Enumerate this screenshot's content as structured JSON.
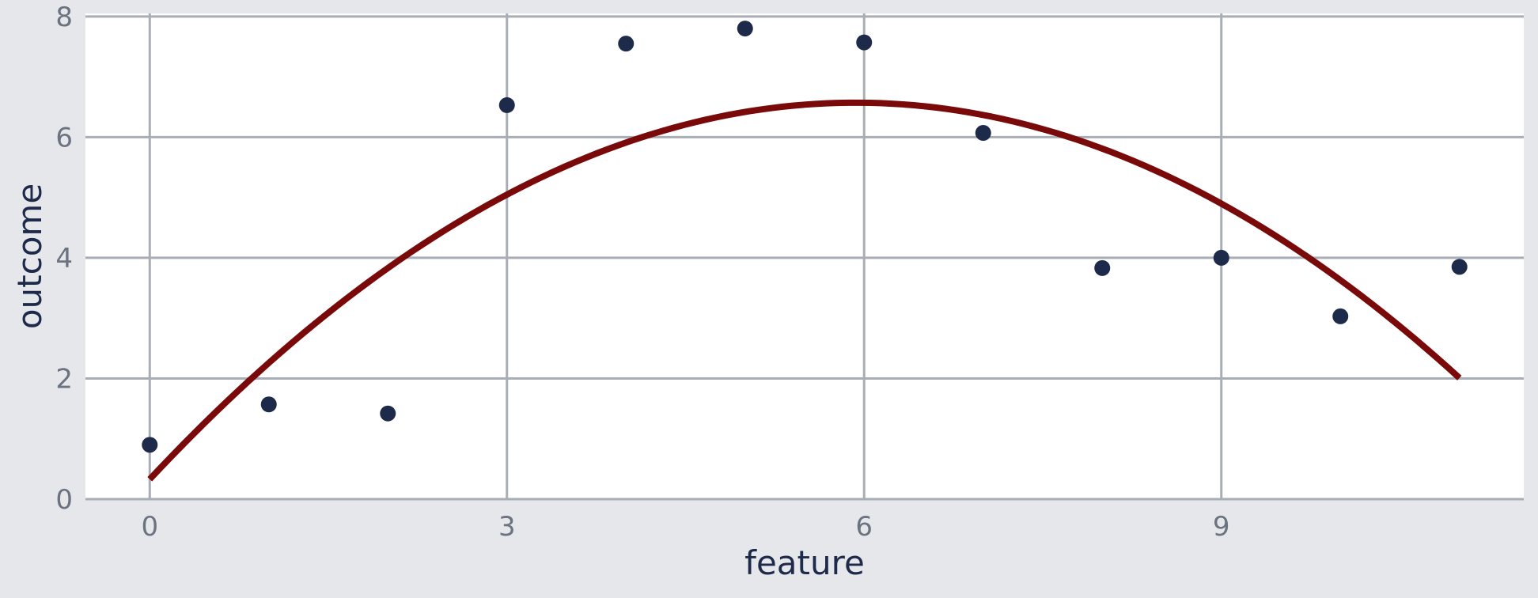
{
  "chart_data": {
    "type": "scatter",
    "title": "",
    "xlabel": "feature",
    "ylabel": "outcome",
    "xlim": [
      -0.54,
      11.54
    ],
    "ylim": [
      0,
      8.05
    ],
    "x_ticks": [
      0,
      3,
      6,
      9
    ],
    "y_ticks": [
      0,
      2,
      4,
      6,
      8
    ],
    "grid": true,
    "legend": "none",
    "colors": {
      "background": "#e5e7eb",
      "panel": "#ffffff",
      "grid": "#a9adb6",
      "points": "#1e2a4a",
      "fit_line": "#7a0a0a"
    },
    "series": [
      {
        "kind": "points",
        "x": [
          0,
          1,
          2,
          3,
          4,
          5,
          6,
          7,
          8,
          9,
          10,
          11
        ],
        "y": [
          0.9,
          1.57,
          1.42,
          6.53,
          7.55,
          7.8,
          7.57,
          6.07,
          3.83,
          4.0,
          3.03,
          3.85
        ]
      },
      {
        "kind": "fit_curve",
        "model": "quadratic",
        "x_range": [
          0,
          11
        ],
        "coefficients": {
          "a": -0.1775,
          "b": 2.105,
          "c": 0.33
        }
      }
    ]
  }
}
